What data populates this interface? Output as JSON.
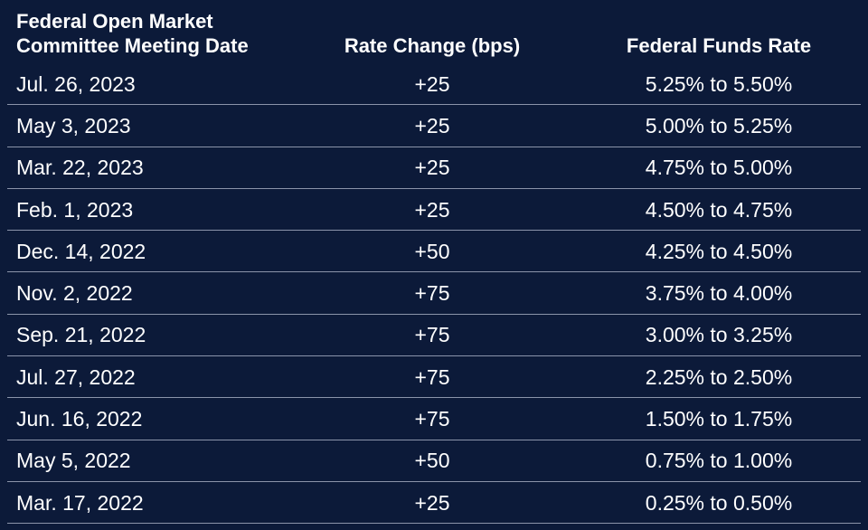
{
  "table": {
    "header": [
      "Federal Open Market Committee Meeting Date",
      "Rate Change (bps)",
      "Federal Funds Rate"
    ],
    "rows": [
      [
        "Jul. 26, 2023",
        "+25",
        "5.25% to 5.50%"
      ],
      [
        "May 3, 2023",
        "+25",
        "5.00% to 5.25%"
      ],
      [
        "Mar. 22, 2023",
        "+25",
        "4.75% to 5.00%"
      ],
      [
        "Feb. 1, 2023",
        "+25",
        "4.50% to 4.75%"
      ],
      [
        "Dec. 14, 2022",
        "+50",
        "4.25% to 4.50%"
      ],
      [
        "Nov. 2, 2022",
        "+75",
        "3.75% to 4.00%"
      ],
      [
        "Sep. 21, 2022",
        "+75",
        "3.00% to 3.25%"
      ],
      [
        "Jul. 27, 2022",
        "+75",
        "2.25% to 2.50%"
      ],
      [
        "Jun. 16, 2022",
        "+75",
        "1.50% to 1.75%"
      ],
      [
        "May 5, 2022",
        "+50",
        "0.75% to 1.00%"
      ],
      [
        "Mar. 17, 2022",
        "+25",
        "0.25% to 0.50%"
      ]
    ]
  }
}
